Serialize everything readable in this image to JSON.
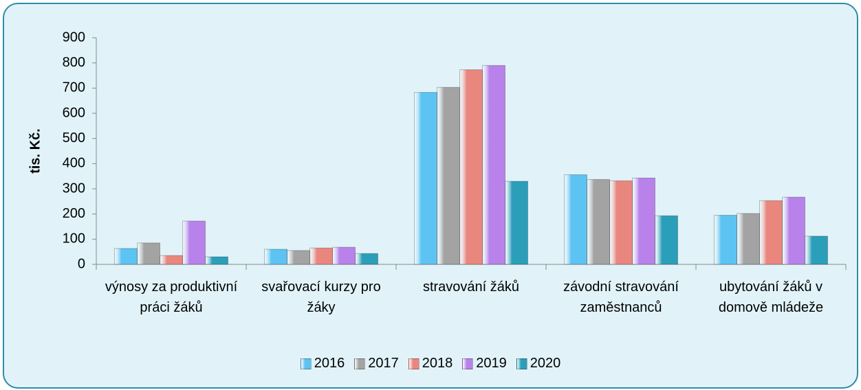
{
  "chart_data": {
    "type": "bar",
    "y_label": "tis. Kč.",
    "categories": [
      "výnosy za produktivní práci žáků",
      "svařovací kurzy pro žáky",
      "stravování žáků",
      "závodní stravování zaměstnanců",
      "ubytování žáků v domově mládeže"
    ],
    "series": [
      {
        "name": "2016",
        "color": "#5cc3f2",
        "values": [
          63,
          60,
          683,
          356,
          195
        ]
      },
      {
        "name": "2017",
        "color": "#a3a3a3",
        "values": [
          85,
          55,
          703,
          337,
          202
        ]
      },
      {
        "name": "2018",
        "color": "#e9877f",
        "values": [
          35,
          65,
          773,
          332,
          253
        ]
      },
      {
        "name": "2019",
        "color": "#b882ea",
        "values": [
          172,
          68,
          790,
          343,
          267
        ]
      },
      {
        "name": "2020",
        "color": "#2b9fb9",
        "values": [
          30,
          43,
          330,
          193,
          112
        ]
      }
    ],
    "ylim": [
      0,
      900
    ],
    "yticks": [
      0,
      100,
      200,
      300,
      400,
      500,
      600,
      700,
      800,
      900
    ],
    "legend": "bottom"
  }
}
